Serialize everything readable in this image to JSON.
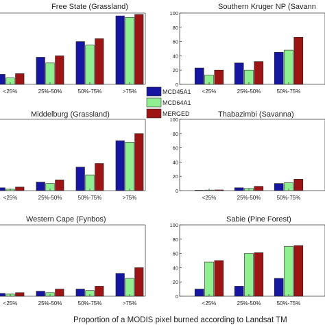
{
  "colors": {
    "MCD45A1": "#1616a0",
    "MCD64A1": "#90f090",
    "MERGED": "#9c1414"
  },
  "legend": {
    "entries": [
      "MCD45A1",
      "MCD64A1",
      "MERGED"
    ]
  },
  "footer": {
    "xlabel": "Proportion  of a MODIS pixel burned according to Landsat TM"
  },
  "chart_data": [
    {
      "type": "bar",
      "title": "Free State (Grassland)",
      "categories": [
        "<25%",
        "25%-50%",
        "50%-75%",
        ">75%"
      ],
      "ylim": [
        0,
        100
      ],
      "series": [
        {
          "name": "MCD45A1",
          "values": [
            14,
            38,
            60,
            96
          ]
        },
        {
          "name": "MCD64A1",
          "values": [
            9,
            30,
            55,
            94
          ]
        },
        {
          "name": "MERGED",
          "values": [
            15,
            40,
            64,
            98
          ]
        }
      ]
    },
    {
      "type": "bar",
      "title": "Southern Kruger NP (Savann",
      "categories": [
        "<25%",
        "25%-50%",
        "50%-75%"
      ],
      "ylim": [
        0,
        100
      ],
      "yticks": [
        0,
        20,
        40,
        60,
        80,
        100
      ],
      "series": [
        {
          "name": "MCD45A1",
          "values": [
            23,
            30,
            45
          ]
        },
        {
          "name": "MCD64A1",
          "values": [
            13,
            20,
            48
          ]
        },
        {
          "name": "MERGED",
          "values": [
            20,
            32,
            66
          ]
        }
      ]
    },
    {
      "type": "bar",
      "title": "Middelburg (Grassland)",
      "categories": [
        "<25%",
        "25%-50%",
        "50%-75%",
        ">75%"
      ],
      "ylim": [
        0,
        100
      ],
      "series": [
        {
          "name": "MCD45A1",
          "values": [
            4,
            12,
            33,
            70
          ]
        },
        {
          "name": "MCD64A1",
          "values": [
            2,
            10,
            22,
            68
          ]
        },
        {
          "name": "MERGED",
          "values": [
            5,
            15,
            38,
            80
          ]
        }
      ]
    },
    {
      "type": "bar",
      "title": "Thabazimbi (Savanna)",
      "categories": [
        "<25%",
        "25%-50%",
        "50%-75%"
      ],
      "ylim": [
        0,
        100
      ],
      "yticks": [
        0,
        20,
        40,
        60,
        80,
        100
      ],
      "series": [
        {
          "name": "MCD45A1",
          "values": [
            0.5,
            4,
            10
          ]
        },
        {
          "name": "MCD64A1",
          "values": [
            0.8,
            3,
            11
          ]
        },
        {
          "name": "MERGED",
          "values": [
            1,
            6,
            16
          ]
        }
      ]
    },
    {
      "type": "bar",
      "title": "Western Cape (Fynbos)",
      "categories": [
        "<25%",
        "25%-50%",
        "50%-75%",
        ">75%"
      ],
      "ylim": [
        0,
        100
      ],
      "series": [
        {
          "name": "MCD45A1",
          "values": [
            4,
            7,
            10,
            32
          ]
        },
        {
          "name": "MCD64A1",
          "values": [
            3,
            5,
            8,
            25
          ]
        },
        {
          "name": "MERGED",
          "values": [
            5,
            10,
            14,
            40
          ]
        }
      ]
    },
    {
      "type": "bar",
      "title": "Sabie (Pine Forest)",
      "categories": [
        "<25%",
        "25%-50%",
        "50%-75%"
      ],
      "ylim": [
        0,
        100
      ],
      "yticks": [
        0,
        20,
        40,
        60,
        80,
        100
      ],
      "series": [
        {
          "name": "MCD45A1",
          "values": [
            10,
            14,
            25
          ]
        },
        {
          "name": "MCD64A1",
          "values": [
            48,
            60,
            70
          ]
        },
        {
          "name": "MERGED",
          "values": [
            50,
            61,
            71
          ]
        }
      ]
    }
  ]
}
